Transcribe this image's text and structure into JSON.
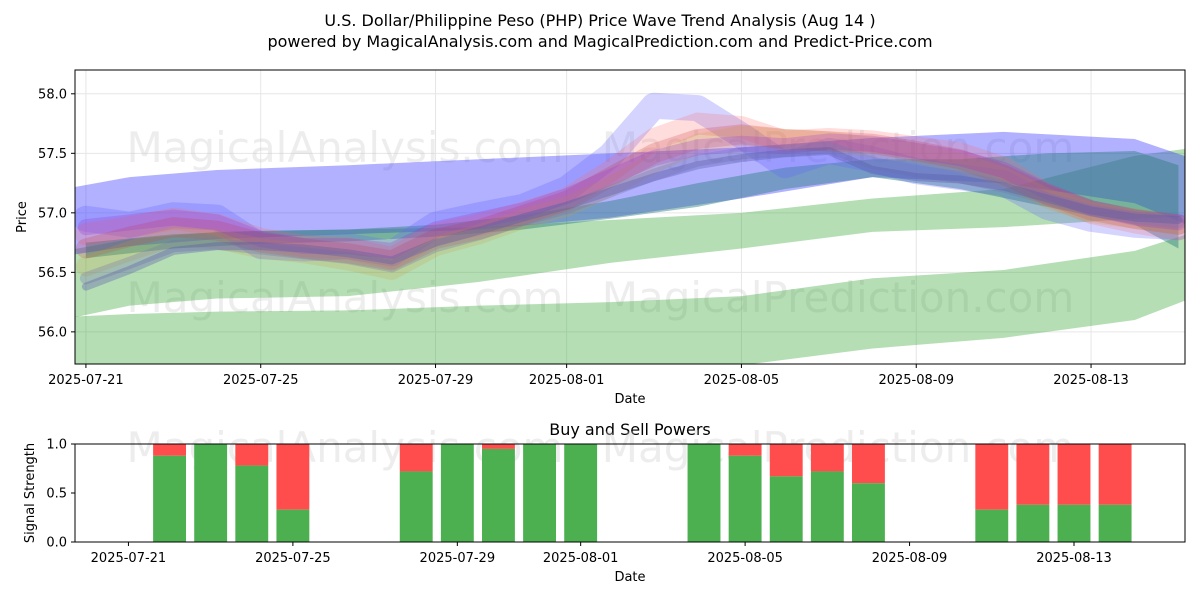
{
  "title_line1": "U.S. Dollar/Philippine Peso (PHP) Price Wave Trend Analysis (Aug 14 )",
  "title_line2": "powered by MagicalAnalysis.com and MagicalPrediction.com and Predict-Price.com",
  "watermarks": [
    "MagicalAnalysis.com",
    "MagicalPrediction.com"
  ],
  "colors": {
    "green": "#2ca02c",
    "blue": "#3333ff",
    "buy": "#4caf50",
    "sell": "#ff4d4d",
    "grid": "#e6e6e6"
  },
  "chart_data": [
    {
      "type": "area",
      "title": "",
      "xlabel": "Date",
      "ylabel": "Price",
      "ylim": [
        55.73,
        58.2
      ],
      "xlim_days": [
        -0.25,
        25.15
      ],
      "x_start_date": "2025-07-21",
      "yticks": [
        "56.0",
        "56.5",
        "57.0",
        "57.5",
        "58.0"
      ],
      "ytick_values": [
        56.0,
        56.5,
        57.0,
        57.5,
        58.0
      ],
      "xticks": [
        "2025-07-21",
        "2025-07-25",
        "2025-07-29",
        "2025-08-01",
        "2025-08-05",
        "2025-08-09",
        "2025-08-13"
      ],
      "xtick_days": [
        0,
        4,
        8,
        11,
        15,
        19,
        23
      ],
      "bands": [
        {
          "name": "green-low",
          "color": "#2ca02c",
          "opacity": 0.35,
          "x": [
            -0.8,
            1,
            3,
            6,
            9,
            12,
            15,
            18,
            21,
            24,
            25.2
          ],
          "upper": [
            56.12,
            56.15,
            56.17,
            56.18,
            56.22,
            56.25,
            56.3,
            56.45,
            56.52,
            56.68,
            56.82
          ],
          "lower": [
            55.74,
            55.7,
            55.68,
            55.65,
            55.65,
            55.66,
            55.72,
            55.86,
            55.95,
            56.1,
            56.27
          ]
        },
        {
          "name": "green-high",
          "color": "#2ca02c",
          "opacity": 0.35,
          "x": [
            -0.8,
            1,
            3,
            6,
            9,
            12,
            15,
            18,
            21,
            24,
            25.2
          ],
          "upper": [
            56.66,
            56.78,
            56.84,
            56.86,
            56.88,
            56.94,
            57.0,
            57.12,
            57.2,
            57.48,
            57.54
          ],
          "lower": [
            56.08,
            56.22,
            56.28,
            56.3,
            56.42,
            56.58,
            56.7,
            56.84,
            56.88,
            56.95,
            56.97
          ]
        },
        {
          "name": "blue-wide",
          "color": "#3333ff",
          "opacity": 0.38,
          "x": [
            -0.8,
            1,
            3,
            6,
            9,
            12,
            15,
            18,
            21,
            24,
            25.2
          ],
          "upper": [
            57.18,
            57.3,
            57.36,
            57.4,
            57.45,
            57.5,
            57.55,
            57.63,
            57.68,
            57.62,
            57.47
          ],
          "lower": [
            56.62,
            56.72,
            56.78,
            56.82,
            56.86,
            56.96,
            57.12,
            57.3,
            57.25,
            57.08,
            56.9
          ]
        },
        {
          "name": "teal-mid",
          "color": "#2c7f7f",
          "opacity": 0.45,
          "x": [
            0,
            2,
            4,
            6,
            8,
            10,
            12,
            14,
            16,
            18,
            20,
            22,
            24,
            25
          ],
          "upper": [
            56.75,
            56.82,
            56.85,
            56.86,
            56.9,
            56.98,
            57.1,
            57.25,
            57.38,
            57.45,
            57.45,
            57.5,
            57.52,
            57.4
          ],
          "lower": [
            56.62,
            56.7,
            56.74,
            56.76,
            56.8,
            56.86,
            56.95,
            57.05,
            57.2,
            57.3,
            57.2,
            57.05,
            56.9,
            56.7
          ]
        }
      ],
      "lines": [
        {
          "color": "#6666ff",
          "opacity": 0.28,
          "width": 26,
          "x": [
            0,
            1,
            2,
            3,
            4,
            5,
            6,
            7,
            8,
            9,
            10,
            11,
            12,
            13,
            14,
            15,
            16,
            17,
            18,
            19,
            20,
            21,
            22,
            23,
            24,
            25
          ],
          "y": [
            56.95,
            56.9,
            56.98,
            56.96,
            56.72,
            56.7,
            56.72,
            56.66,
            56.9,
            56.98,
            57.05,
            57.2,
            57.48,
            57.9,
            57.88,
            57.65,
            57.4,
            57.52,
            57.45,
            57.35,
            57.3,
            57.25,
            57.05,
            56.95,
            56.9,
            56.88
          ]
        },
        {
          "color": "#ff6666",
          "opacity": 0.22,
          "width": 22,
          "x": [
            0,
            1,
            2,
            3,
            4,
            5,
            6,
            7,
            8,
            9,
            10,
            11,
            12,
            13,
            14,
            15,
            16,
            17,
            18,
            19,
            20,
            21,
            22,
            23,
            24,
            25
          ],
          "y": [
            56.82,
            56.88,
            56.95,
            56.9,
            56.78,
            56.72,
            56.7,
            56.62,
            56.82,
            56.9,
            57.0,
            57.12,
            57.35,
            57.62,
            57.75,
            57.72,
            57.6,
            57.62,
            57.6,
            57.55,
            57.5,
            57.38,
            57.15,
            57.0,
            56.92,
            56.86
          ]
        },
        {
          "color": "#cc3333",
          "opacity": 0.22,
          "width": 20,
          "x": [
            0,
            1,
            2,
            3,
            4,
            5,
            6,
            7,
            8,
            9,
            10,
            11,
            12,
            13,
            14,
            15,
            16,
            17,
            18,
            19,
            20,
            21,
            22,
            23,
            24,
            25
          ],
          "y": [
            56.7,
            56.8,
            56.88,
            56.85,
            56.75,
            56.7,
            56.66,
            56.6,
            56.78,
            56.86,
            56.98,
            57.1,
            57.3,
            57.5,
            57.62,
            57.66,
            57.62,
            57.6,
            57.58,
            57.52,
            57.45,
            57.32,
            57.15,
            57.02,
            56.95,
            56.9
          ]
        },
        {
          "color": "#cc9933",
          "opacity": 0.2,
          "width": 20,
          "x": [
            0,
            1,
            2,
            3,
            4,
            5,
            6,
            7,
            8,
            9,
            10,
            11,
            12,
            13,
            14,
            15,
            16,
            17,
            18,
            19,
            20,
            21,
            22,
            23,
            24,
            25
          ],
          "y": [
            56.55,
            56.68,
            56.8,
            56.78,
            56.7,
            56.66,
            56.6,
            56.52,
            56.72,
            56.82,
            56.95,
            57.05,
            57.22,
            57.42,
            57.58,
            57.65,
            57.62,
            57.6,
            57.55,
            57.5,
            57.42,
            57.3,
            57.12,
            57.0,
            56.95,
            56.9
          ]
        },
        {
          "color": "#9933cc",
          "opacity": 0.25,
          "width": 16,
          "x": [
            0,
            1,
            2,
            3,
            4,
            5,
            6,
            7,
            8,
            9,
            10,
            11,
            12,
            13,
            14,
            15,
            16,
            17,
            18,
            19,
            20,
            21,
            22,
            23,
            24,
            25
          ],
          "y": [
            56.88,
            56.92,
            56.96,
            56.92,
            56.78,
            56.72,
            56.72,
            56.68,
            56.86,
            56.94,
            57.02,
            57.14,
            57.3,
            57.46,
            57.55,
            57.58,
            57.56,
            57.6,
            57.58,
            57.52,
            57.46,
            57.36,
            57.18,
            57.04,
            56.96,
            56.92
          ]
        },
        {
          "color": "#7777aa",
          "opacity": 0.32,
          "width": 12,
          "x": [
            0,
            1,
            2,
            3,
            4,
            5,
            6,
            7,
            8,
            9,
            10,
            11,
            12,
            13,
            14,
            15,
            16,
            17,
            18,
            19,
            20,
            21,
            22,
            23,
            24,
            25
          ],
          "y": [
            56.45,
            56.58,
            56.72,
            56.74,
            56.7,
            56.66,
            56.62,
            56.55,
            56.72,
            56.82,
            56.94,
            57.04,
            57.18,
            57.32,
            57.44,
            57.5,
            57.52,
            57.55,
            57.42,
            57.35,
            57.3,
            57.22,
            57.12,
            57.02,
            56.96,
            56.92
          ]
        },
        {
          "color": "#5555aa",
          "opacity": 0.35,
          "width": 8,
          "x": [
            0,
            1,
            2,
            3,
            4,
            5,
            6,
            7,
            8,
            9,
            10,
            11,
            12,
            13,
            14,
            15,
            16,
            17,
            18,
            19,
            20,
            21,
            22,
            23,
            24,
            25
          ],
          "y": [
            56.38,
            56.52,
            56.68,
            56.72,
            56.72,
            56.7,
            56.66,
            56.6,
            56.75,
            56.85,
            56.96,
            57.06,
            57.18,
            57.3,
            57.4,
            57.46,
            57.5,
            57.52,
            57.36,
            57.3,
            57.28,
            57.22,
            57.12,
            57.02,
            56.96,
            56.94
          ]
        }
      ]
    },
    {
      "type": "bar",
      "title": "Buy and Sell Powers",
      "xlabel": "Date",
      "ylabel": "Signal Strength",
      "ylim": [
        0,
        1
      ],
      "yticks": [
        "0.0",
        "0.5",
        "1.0"
      ],
      "ytick_values": [
        0,
        0.5,
        1
      ],
      "xlim_days": [
        -1.3,
        25.7
      ],
      "xticks": [
        "2025-07-21",
        "2025-07-25",
        "2025-07-29",
        "2025-08-01",
        "2025-08-05",
        "2025-08-09",
        "2025-08-13"
      ],
      "xtick_days": [
        0,
        4,
        8,
        11,
        15,
        19,
        23
      ],
      "bars": [
        {
          "day": 1,
          "buy": 0.88
        },
        {
          "day": 2,
          "buy": 1.0
        },
        {
          "day": 3,
          "buy": 0.78
        },
        {
          "day": 4,
          "buy": 0.33
        },
        {
          "day": 7,
          "buy": 0.72
        },
        {
          "day": 8,
          "buy": 1.0
        },
        {
          "day": 9,
          "buy": 0.95
        },
        {
          "day": 10,
          "buy": 1.0
        },
        {
          "day": 11,
          "buy": 1.0
        },
        {
          "day": 14,
          "buy": 1.0
        },
        {
          "day": 15,
          "buy": 0.88
        },
        {
          "day": 16,
          "buy": 0.67
        },
        {
          "day": 17,
          "buy": 0.72
        },
        {
          "day": 18,
          "buy": 0.6
        },
        {
          "day": 21,
          "buy": 0.33
        },
        {
          "day": 22,
          "buy": 0.38
        },
        {
          "day": 23,
          "buy": 0.38
        },
        {
          "day": 24,
          "buy": 0.38
        }
      ]
    }
  ]
}
